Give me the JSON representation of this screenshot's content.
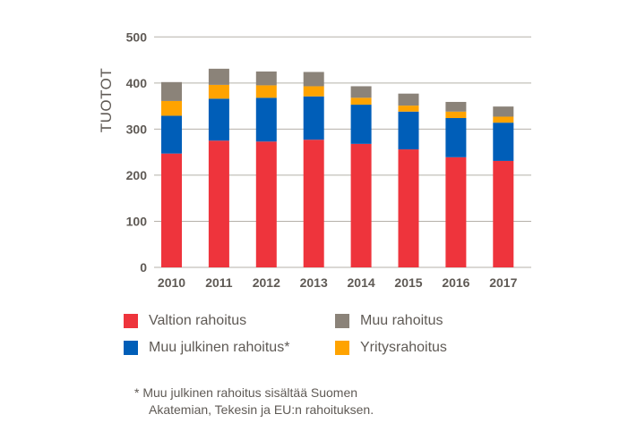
{
  "chart_data": {
    "type": "bar",
    "stacked": true,
    "title": "",
    "xlabel": "",
    "ylabel": "TUOTOT",
    "ylim": [
      0,
      500
    ],
    "yticks": [
      0,
      100,
      200,
      300,
      400,
      500
    ],
    "grid": true,
    "categories": [
      "2010",
      "2011",
      "2012",
      "2013",
      "2014",
      "2015",
      "2016",
      "2017"
    ],
    "series": [
      {
        "name": "Valtion rahoitus",
        "color": "#ee343c",
        "values": [
          247,
          275,
          273,
          277,
          268,
          256,
          239,
          231
        ]
      },
      {
        "name": "Muu julkinen rahoitus*",
        "color": "#005eb8",
        "values": [
          82,
          91,
          95,
          94,
          85,
          82,
          85,
          83
        ]
      },
      {
        "name": "Yritysrahoitus",
        "color": "#ffa300",
        "values": [
          32,
          30,
          27,
          22,
          15,
          13,
          14,
          13
        ]
      },
      {
        "name": "Muu rahoitus",
        "color": "#8b8379",
        "values": [
          41,
          35,
          30,
          31,
          25,
          26,
          21,
          22
        ]
      }
    ],
    "legend": {
      "placement": "bottom",
      "items": [
        {
          "label": "Valtion rahoitus",
          "color": "#ee343c"
        },
        {
          "label": "Muu julkinen rahoitus*",
          "color": "#005eb8"
        },
        {
          "label": "Muu rahoitus",
          "color": "#8b8379"
        },
        {
          "label": "Yritysrahoitus",
          "color": "#ffa300"
        }
      ]
    },
    "footnote": {
      "line1": "* Muu julkinen rahoitus sisältää Suomen",
      "line2": "Akatemian, Tekesin ja EU:n rahoituksen."
    }
  }
}
